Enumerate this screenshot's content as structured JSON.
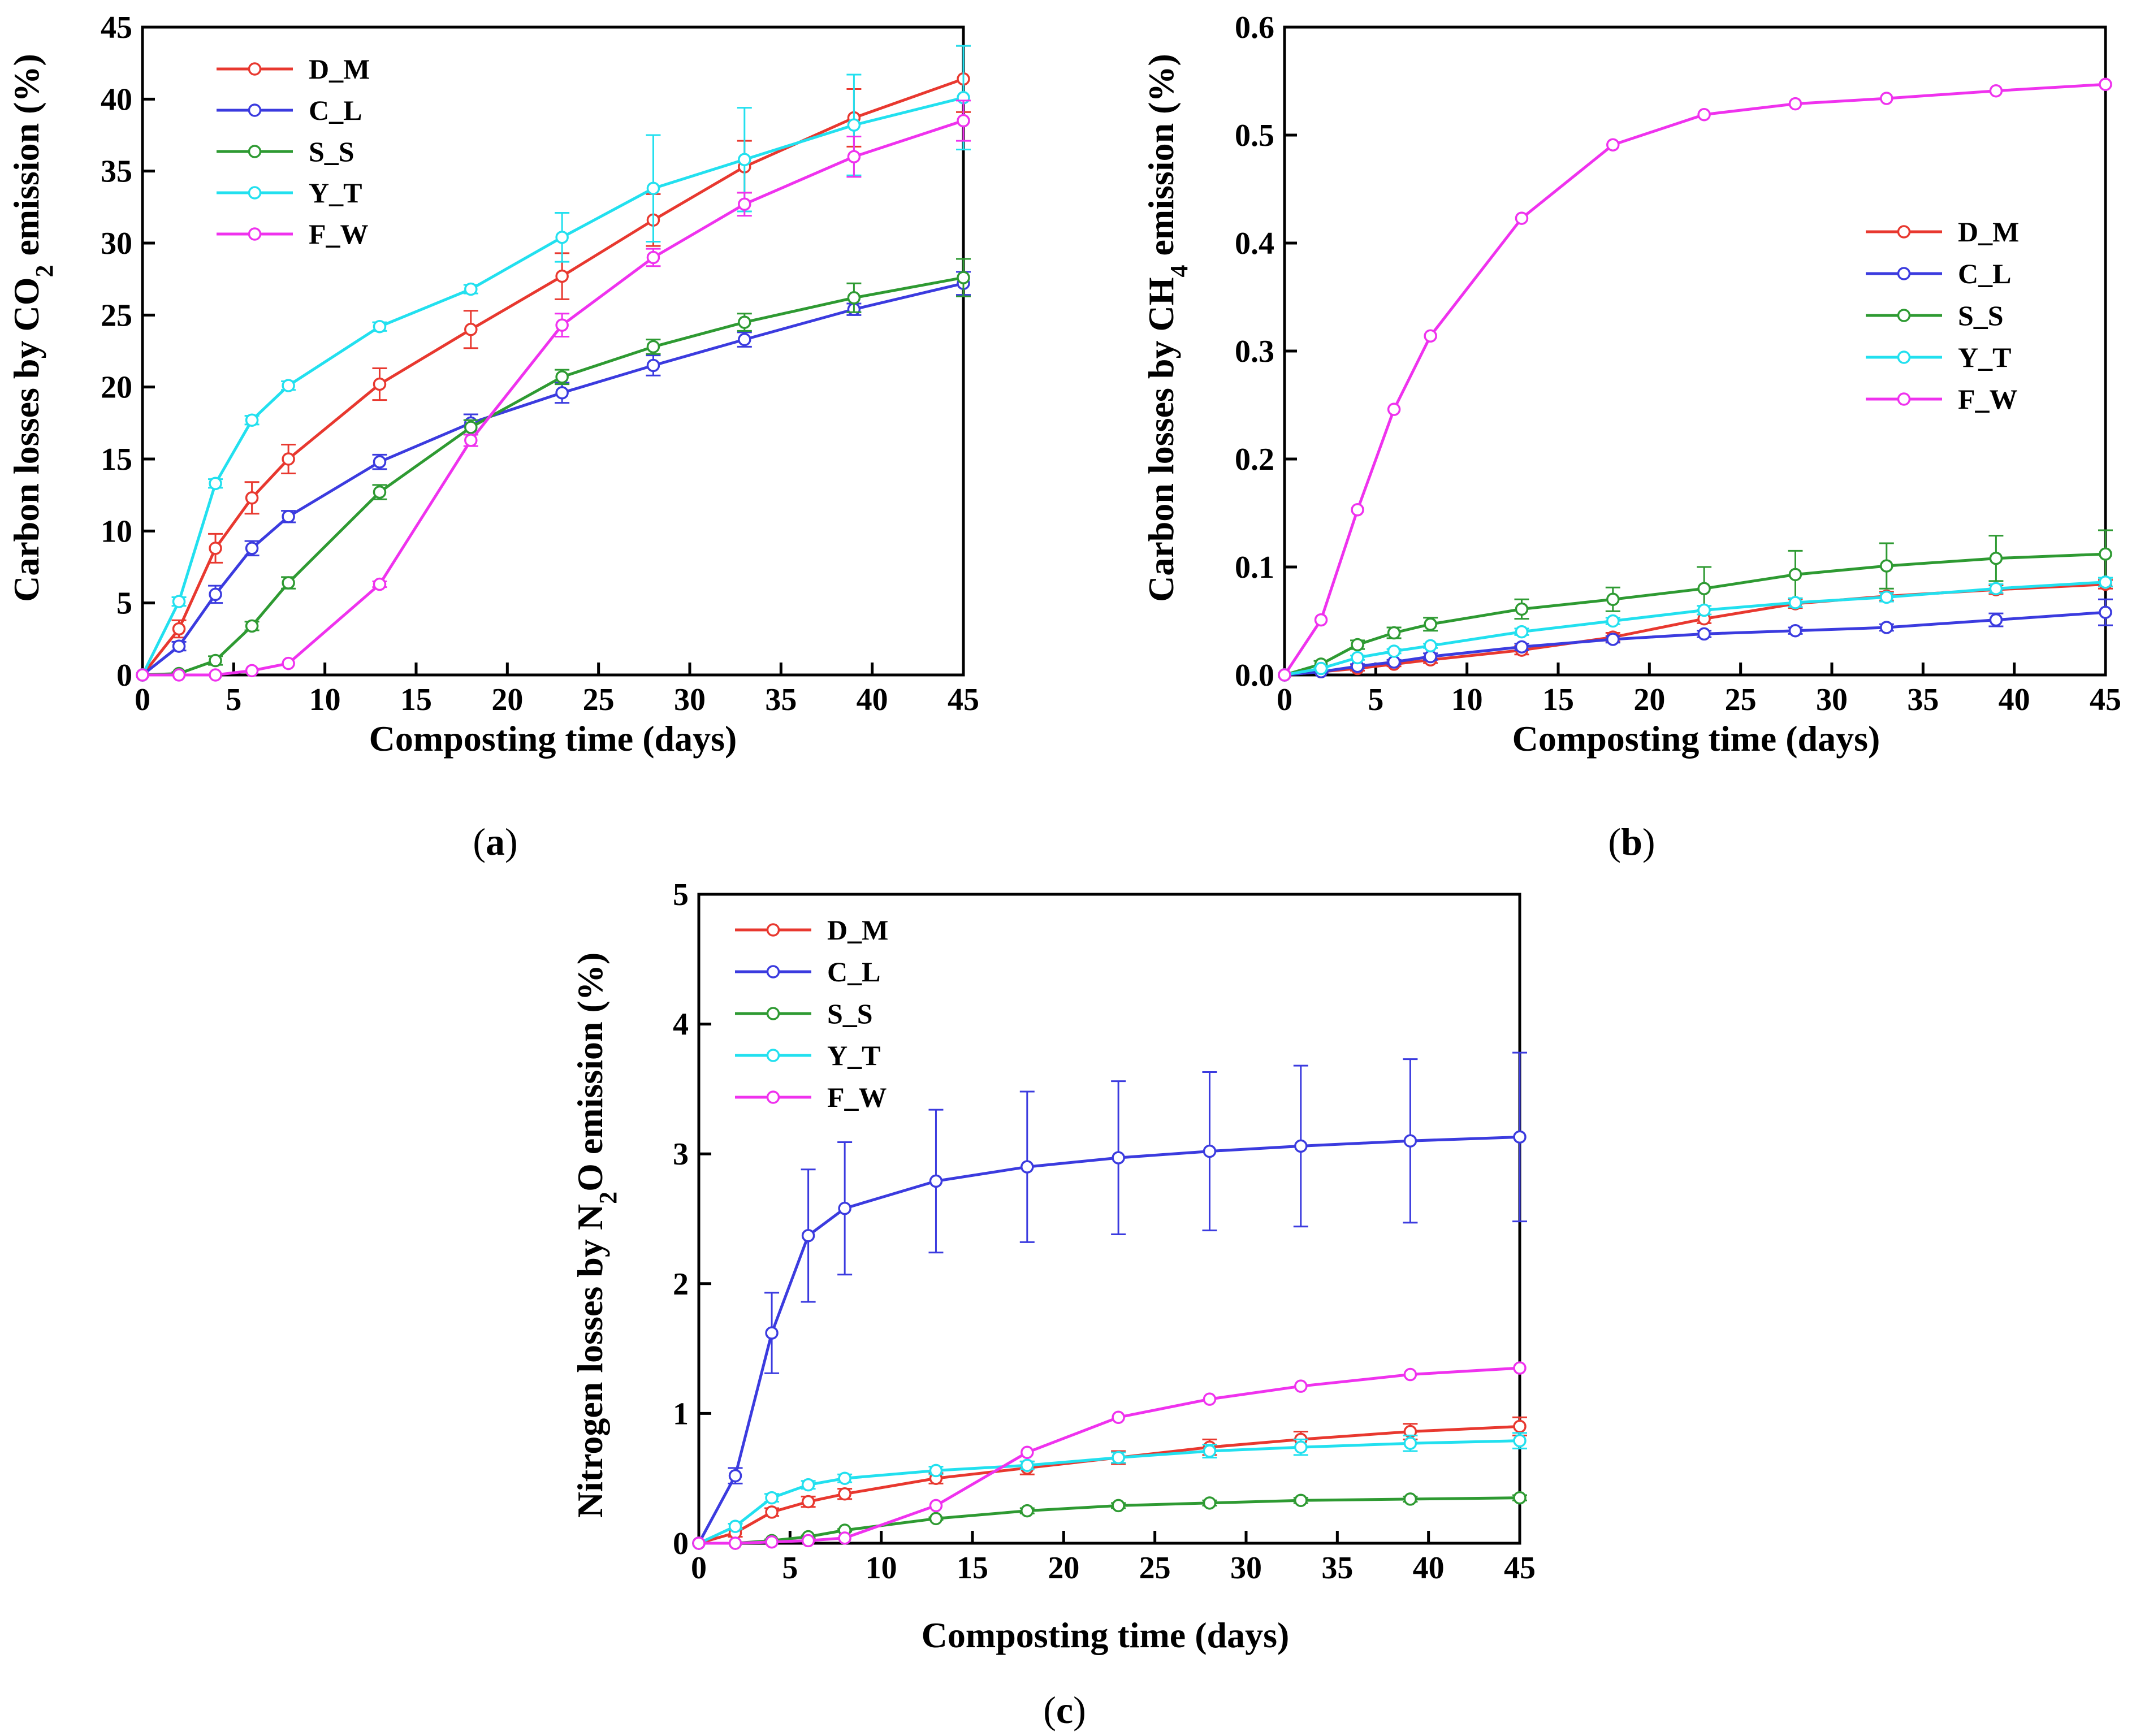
{
  "chart_data": [
    {
      "type": "line",
      "panel_label": "a",
      "title": "",
      "xlabel": "Composting time (days)",
      "ylabel_prefix": "Carbon losses by CO",
      "ylabel_subscript": "2",
      "ylabel_suffix": " emission (%)",
      "xlim": [
        0,
        45
      ],
      "ylim": [
        0,
        45
      ],
      "xticks": [
        "0",
        "5",
        "10",
        "15",
        "20",
        "25",
        "30",
        "35",
        "40",
        "45"
      ],
      "yticks": [
        "0",
        "5",
        "10",
        "15",
        "20",
        "25",
        "30",
        "35",
        "40",
        "45"
      ],
      "legend_position": "top-left",
      "x": [
        0,
        2,
        4,
        6,
        8,
        13,
        18,
        23,
        28,
        33,
        39,
        45
      ],
      "series": [
        {
          "name": "D_M",
          "color": "#e8382f",
          "values": [
            0,
            3.2,
            8.8,
            12.3,
            15.0,
            20.2,
            24.0,
            27.7,
            31.6,
            35.3,
            38.7,
            41.4
          ],
          "errors": [
            0,
            0.6,
            1.0,
            1.1,
            1.0,
            1.1,
            1.3,
            1.6,
            1.8,
            1.8,
            2.0,
            2.3
          ]
        },
        {
          "name": "C_L",
          "color": "#3b3bdf",
          "values": [
            0,
            2.0,
            5.6,
            8.8,
            11.0,
            14.8,
            17.5,
            19.6,
            21.5,
            23.3,
            25.4,
            27.2
          ],
          "errors": [
            0,
            0.3,
            0.6,
            0.5,
            0.4,
            0.5,
            0.6,
            0.7,
            0.7,
            0.5,
            0.4,
            0.8
          ]
        },
        {
          "name": "S_S",
          "color": "#2e9a32",
          "values": [
            0,
            0.1,
            1.0,
            3.4,
            6.4,
            12.7,
            17.2,
            20.7,
            22.8,
            24.5,
            26.2,
            27.6
          ],
          "errors": [
            0,
            0.1,
            0.3,
            0.3,
            0.4,
            0.5,
            0.5,
            0.5,
            0.5,
            0.6,
            1.0,
            1.3
          ]
        },
        {
          "name": "Y_T",
          "color": "#22e0ef",
          "values": [
            0,
            5.1,
            13.3,
            17.7,
            20.1,
            24.2,
            26.8,
            30.4,
            33.8,
            35.8,
            38.2,
            40.1
          ],
          "errors": [
            0,
            0.3,
            0.3,
            0.3,
            0.3,
            0.3,
            0.3,
            1.7,
            3.7,
            3.6,
            3.5,
            3.6
          ]
        },
        {
          "name": "F_W",
          "color": "#ef32ee",
          "values": [
            0,
            0,
            0,
            0.3,
            0.8,
            6.3,
            16.3,
            24.3,
            29.0,
            32.7,
            36.0,
            38.5
          ],
          "errors": [
            0,
            0,
            0,
            0,
            0,
            0.2,
            0.4,
            0.8,
            0.6,
            0.8,
            1.4,
            1.4
          ]
        }
      ]
    },
    {
      "type": "line",
      "panel_label": "b",
      "title": "",
      "xlabel": "Composting time (days)",
      "ylabel_prefix": "Carbon losses by CH",
      "ylabel_subscript": "4",
      "ylabel_suffix": " emission (%)",
      "xlim": [
        0,
        45
      ],
      "ylim": [
        0,
        0.6
      ],
      "xticks": [
        "0",
        "5",
        "10",
        "15",
        "20",
        "25",
        "30",
        "35",
        "40",
        "45"
      ],
      "yticks": [
        "0.0",
        "0.1",
        "0.2",
        "0.3",
        "0.4",
        "0.5",
        "0.6"
      ],
      "legend_position": "right",
      "x": [
        0,
        2,
        4,
        6,
        8,
        13,
        18,
        23,
        28,
        33,
        39,
        45
      ],
      "series": [
        {
          "name": "D_M",
          "color": "#e8382f",
          "values": [
            0,
            0.003,
            0.006,
            0.01,
            0.014,
            0.023,
            0.035,
            0.052,
            0.066,
            0.073,
            0.079,
            0.084
          ],
          "errors": [
            0,
            0.001,
            0.002,
            0.002,
            0.003,
            0.004,
            0.004,
            0.004,
            0.004,
            0.004,
            0.004,
            0.004
          ]
        },
        {
          "name": "C_L",
          "color": "#3b3bdf",
          "values": [
            0,
            0.003,
            0.008,
            0.012,
            0.017,
            0.026,
            0.033,
            0.038,
            0.041,
            0.044,
            0.051,
            0.058
          ],
          "errors": [
            0,
            0.001,
            0.002,
            0.002,
            0.003,
            0.003,
            0.003,
            0.003,
            0.003,
            0.003,
            0.006,
            0.012
          ]
        },
        {
          "name": "S_S",
          "color": "#2e9a32",
          "values": [
            0,
            0.01,
            0.028,
            0.039,
            0.047,
            0.061,
            0.07,
            0.08,
            0.093,
            0.101,
            0.108,
            0.112
          ],
          "errors": [
            0,
            0.003,
            0.004,
            0.005,
            0.006,
            0.009,
            0.011,
            0.02,
            0.022,
            0.021,
            0.021,
            0.022
          ]
        },
        {
          "name": "Y_T",
          "color": "#22e0ef",
          "values": [
            0,
            0.006,
            0.016,
            0.022,
            0.027,
            0.04,
            0.05,
            0.06,
            0.067,
            0.072,
            0.08,
            0.086
          ],
          "errors": [
            0,
            0.001,
            0.002,
            0.002,
            0.002,
            0.003,
            0.003,
            0.004,
            0.004,
            0.004,
            0.004,
            0.004
          ]
        },
        {
          "name": "F_W",
          "color": "#ef32ee",
          "values": [
            0,
            0.051,
            0.153,
            0.246,
            0.314,
            0.423,
            0.491,
            0.519,
            0.529,
            0.534,
            0.541,
            0.547
          ],
          "errors": [
            0,
            0,
            0,
            0,
            0,
            0,
            0,
            0,
            0,
            0,
            0,
            0
          ]
        }
      ]
    },
    {
      "type": "line",
      "panel_label": "c",
      "title": "",
      "xlabel": "Composting time (days)",
      "ylabel_prefix": "Nitrogen losses by N",
      "ylabel_subscript": "2",
      "ylabel_suffix": "O emission (%)",
      "xlim": [
        0,
        45
      ],
      "ylim": [
        0,
        5
      ],
      "xticks": [
        "0",
        "5",
        "10",
        "15",
        "20",
        "25",
        "30",
        "35",
        "40",
        "45"
      ],
      "yticks": [
        "0",
        "1",
        "2",
        "3",
        "4",
        "5"
      ],
      "legend_position": "top-left",
      "x": [
        0,
        2,
        4,
        6,
        8,
        13,
        18,
        23,
        28,
        33,
        39,
        45
      ],
      "series": [
        {
          "name": "D_M",
          "color": "#e8382f",
          "values": [
            0,
            0.08,
            0.24,
            0.32,
            0.38,
            0.5,
            0.58,
            0.66,
            0.74,
            0.8,
            0.86,
            0.9
          ],
          "errors": [
            0,
            0.03,
            0.03,
            0.04,
            0.04,
            0.04,
            0.05,
            0.05,
            0.06,
            0.06,
            0.06,
            0.07
          ]
        },
        {
          "name": "C_L",
          "color": "#3b3bdf",
          "values": [
            0,
            0.52,
            1.62,
            2.37,
            2.58,
            2.79,
            2.9,
            2.97,
            3.02,
            3.06,
            3.1,
            3.13
          ],
          "errors": [
            0,
            0.06,
            0.31,
            0.51,
            0.51,
            0.55,
            0.58,
            0.59,
            0.61,
            0.62,
            0.63,
            0.65
          ]
        },
        {
          "name": "S_S",
          "color": "#2e9a32",
          "values": [
            0,
            0,
            0.02,
            0.05,
            0.1,
            0.19,
            0.25,
            0.29,
            0.31,
            0.33,
            0.34,
            0.35
          ],
          "errors": [
            0,
            0,
            0.01,
            0.01,
            0.01,
            0.01,
            0.02,
            0.02,
            0.02,
            0.02,
            0.02,
            0.02
          ]
        },
        {
          "name": "Y_T",
          "color": "#22e0ef",
          "values": [
            0,
            0.13,
            0.35,
            0.45,
            0.5,
            0.56,
            0.6,
            0.66,
            0.71,
            0.74,
            0.77,
            0.79
          ],
          "errors": [
            0,
            0.02,
            0.03,
            0.03,
            0.03,
            0.03,
            0.03,
            0.04,
            0.05,
            0.06,
            0.06,
            0.06
          ]
        },
        {
          "name": "F_W",
          "color": "#ef32ee",
          "values": [
            0,
            0,
            0.01,
            0.02,
            0.04,
            0.29,
            0.7,
            0.97,
            1.11,
            1.21,
            1.3,
            1.35
          ],
          "errors": [
            0,
            0,
            0,
            0,
            0,
            0,
            0,
            0,
            0,
            0,
            0,
            0
          ]
        }
      ]
    }
  ]
}
